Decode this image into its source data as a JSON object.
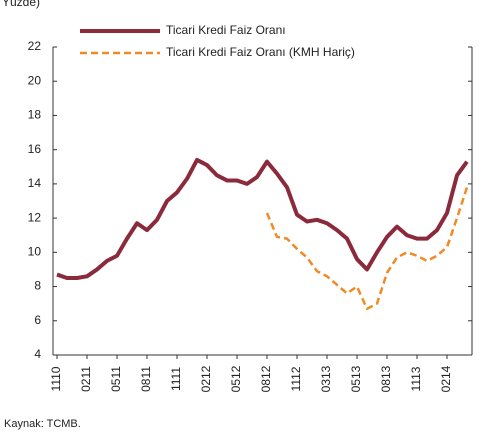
{
  "chart_data": {
    "type": "line",
    "subtitle": "Yüzde)",
    "source": "Kaynak: TCMB.",
    "categories": [
      "1110",
      null,
      null,
      "0211",
      null,
      null,
      "0511",
      null,
      null,
      "0811",
      null,
      null,
      "1111",
      null,
      null,
      "0212",
      null,
      null,
      "0512",
      null,
      null,
      "0812",
      null,
      null,
      "1112",
      null,
      null,
      "0313",
      null,
      null,
      "0513",
      null,
      null,
      "0813",
      null,
      null,
      "1113",
      null,
      null,
      "0214",
      null,
      null
    ],
    "series": [
      {
        "name": "Ticari Kredi Faiz Oranı",
        "color": "#8b2a3a",
        "dashed": false,
        "values": [
          8.7,
          8.5,
          8.5,
          8.6,
          9.0,
          9.5,
          9.8,
          10.8,
          11.7,
          11.3,
          11.9,
          13.0,
          13.5,
          14.3,
          15.4,
          15.1,
          14.5,
          14.2,
          14.2,
          14.0,
          14.4,
          15.3,
          14.6,
          13.8,
          12.2,
          11.8,
          11.9,
          11.7,
          11.3,
          10.8,
          9.6,
          9.0,
          10.0,
          10.9,
          11.5,
          11.0,
          10.8,
          10.8,
          11.3,
          12.3,
          14.5,
          15.3
        ]
      },
      {
        "name": "Ticari Kredi Faiz Oranı (KMH Hariç)",
        "color": "#f08a24",
        "dashed": true,
        "values": [
          null,
          null,
          null,
          null,
          null,
          null,
          null,
          null,
          null,
          null,
          null,
          null,
          null,
          null,
          null,
          null,
          null,
          null,
          null,
          null,
          null,
          12.3,
          10.9,
          10.8,
          10.2,
          9.7,
          8.9,
          8.6,
          8.1,
          7.6,
          8.0,
          6.7,
          7.0,
          8.8,
          9.7,
          10.0,
          9.8,
          9.5,
          9.8,
          10.3,
          12.0,
          13.8
        ]
      }
    ],
    "ylim": [
      4,
      22
    ],
    "yticks": [
      4,
      6,
      8,
      10,
      12,
      14,
      16,
      18,
      20,
      22
    ]
  }
}
